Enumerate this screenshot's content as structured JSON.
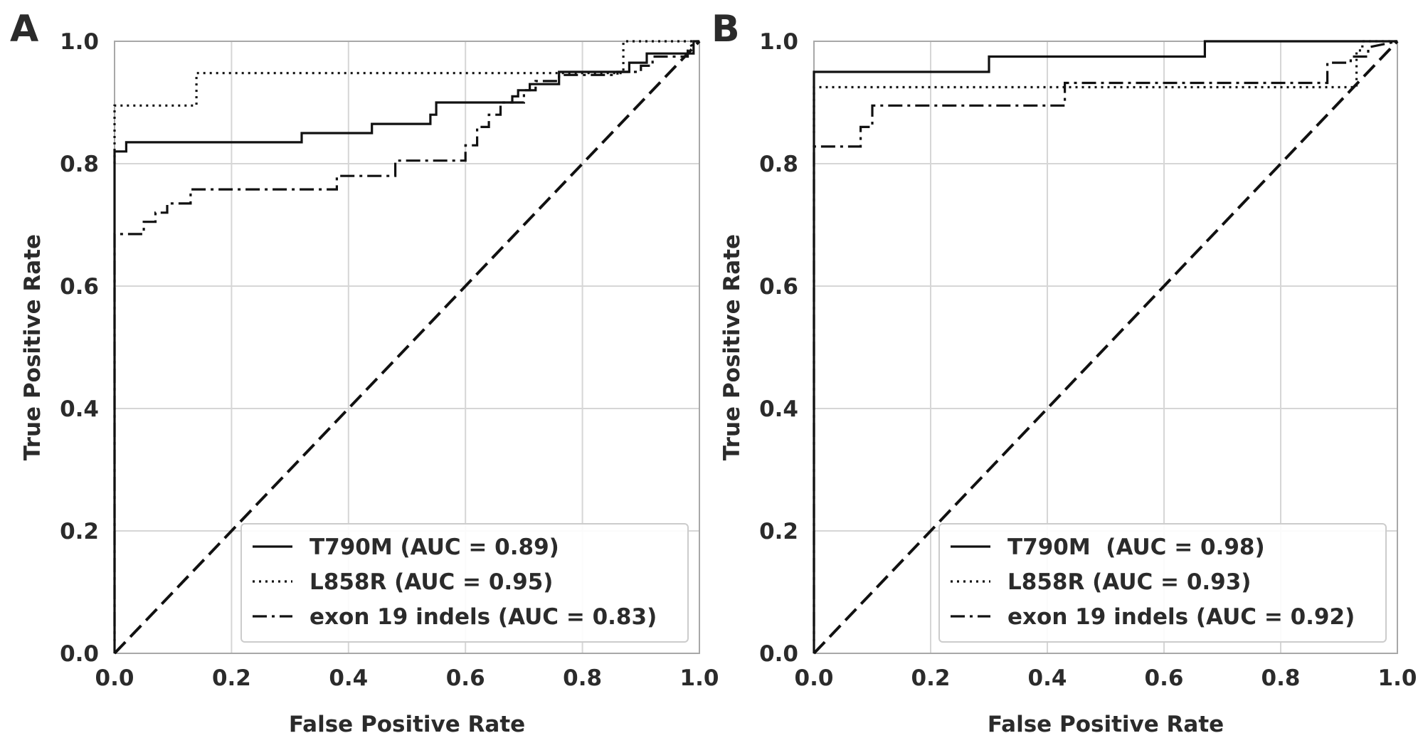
{
  "chart_data": [
    {
      "type": "line",
      "panel": "A",
      "xlabel": "False Positive Rate",
      "ylabel": "True Positive Rate",
      "xlim": [
        0.0,
        1.0
      ],
      "ylim": [
        0.0,
        1.0
      ],
      "xticks": [
        "0.0",
        "0.2",
        "0.4",
        "0.6",
        "0.8",
        "1.0"
      ],
      "yticks": [
        "0.0",
        "0.2",
        "0.4",
        "0.6",
        "0.8",
        "1.0"
      ],
      "grid": true,
      "legend_position": "lower-right",
      "diagonal": [
        [
          0,
          0
        ],
        [
          1,
          1
        ]
      ],
      "series": [
        {
          "name": "T790M (AUC = 0.89)",
          "style": "solid",
          "points": [
            [
              0,
              0.02
            ],
            [
              0,
              0.82
            ],
            [
              0.02,
              0.82
            ],
            [
              0.02,
              0.835
            ],
            [
              0.32,
              0.835
            ],
            [
              0.32,
              0.85
            ],
            [
              0.44,
              0.85
            ],
            [
              0.44,
              0.865
            ],
            [
              0.54,
              0.865
            ],
            [
              0.54,
              0.88
            ],
            [
              0.55,
              0.88
            ],
            [
              0.55,
              0.9
            ],
            [
              0.68,
              0.9
            ],
            [
              0.68,
              0.91
            ],
            [
              0.69,
              0.91
            ],
            [
              0.69,
              0.92
            ],
            [
              0.71,
              0.92
            ],
            [
              0.71,
              0.93
            ],
            [
              0.76,
              0.93
            ],
            [
              0.76,
              0.95
            ],
            [
              0.88,
              0.95
            ],
            [
              0.88,
              0.965
            ],
            [
              0.91,
              0.965
            ],
            [
              0.91,
              0.98
            ],
            [
              0.99,
              0.98
            ],
            [
              0.99,
              1.0
            ],
            [
              1.0,
              1.0
            ]
          ]
        },
        {
          "name": "L858R (AUC = 0.95)",
          "style": "dotted",
          "points": [
            [
              0,
              0.8
            ],
            [
              0,
              0.895
            ],
            [
              0.14,
              0.895
            ],
            [
              0.14,
              0.948
            ],
            [
              0.87,
              0.948
            ],
            [
              0.87,
              1.0
            ],
            [
              1.0,
              1.0
            ]
          ]
        },
        {
          "name": "exon 19 indels (AUC = 0.83)",
          "style": "dashdot",
          "points": [
            [
              0,
              0.0
            ],
            [
              0,
              0.685
            ],
            [
              0.05,
              0.685
            ],
            [
              0.05,
              0.705
            ],
            [
              0.07,
              0.705
            ],
            [
              0.07,
              0.72
            ],
            [
              0.09,
              0.72
            ],
            [
              0.09,
              0.735
            ],
            [
              0.13,
              0.735
            ],
            [
              0.13,
              0.758
            ],
            [
              0.38,
              0.758
            ],
            [
              0.38,
              0.78
            ],
            [
              0.48,
              0.78
            ],
            [
              0.48,
              0.805
            ],
            [
              0.6,
              0.805
            ],
            [
              0.6,
              0.83
            ],
            [
              0.62,
              0.83
            ],
            [
              0.62,
              0.86
            ],
            [
              0.64,
              0.86
            ],
            [
              0.64,
              0.88
            ],
            [
              0.66,
              0.88
            ],
            [
              0.66,
              0.9
            ],
            [
              0.7,
              0.9
            ],
            [
              0.7,
              0.92
            ],
            [
              0.72,
              0.92
            ],
            [
              0.72,
              0.935
            ],
            [
              0.76,
              0.935
            ],
            [
              0.76,
              0.945
            ],
            [
              0.86,
              0.945
            ],
            [
              0.86,
              0.95
            ],
            [
              0.9,
              0.95
            ],
            [
              0.9,
              0.96
            ],
            [
              0.92,
              0.96
            ],
            [
              0.92,
              0.975
            ],
            [
              0.98,
              0.975
            ],
            [
              0.98,
              0.99
            ],
            [
              1.0,
              1.0
            ]
          ]
        }
      ]
    },
    {
      "type": "line",
      "panel": "B",
      "xlabel": "False Positive Rate",
      "ylabel": "True Positive Rate",
      "xlim": [
        0.0,
        1.0
      ],
      "ylim": [
        0.0,
        1.0
      ],
      "xticks": [
        "0.0",
        "0.2",
        "0.4",
        "0.6",
        "0.8",
        "1.0"
      ],
      "yticks": [
        "0.0",
        "0.2",
        "0.4",
        "0.6",
        "0.8",
        "1.0"
      ],
      "grid": true,
      "legend_position": "lower-right",
      "diagonal": [
        [
          0,
          0
        ],
        [
          1,
          1
        ]
      ],
      "series": [
        {
          "name": "T790M  (AUC = 0.98)",
          "style": "solid",
          "points": [
            [
              0,
              0.02
            ],
            [
              0,
              0.95
            ],
            [
              0.3,
              0.95
            ],
            [
              0.3,
              0.975
            ],
            [
              0.67,
              0.975
            ],
            [
              0.67,
              1.0
            ],
            [
              1.0,
              1.0
            ]
          ]
        },
        {
          "name": "L858R (AUC = 0.93)",
          "style": "dotted",
          "points": [
            [
              0,
              0.85
            ],
            [
              0,
              0.925
            ],
            [
              0.93,
              0.925
            ],
            [
              0.93,
              0.985
            ],
            [
              0.94,
              0.985
            ],
            [
              0.94,
              1.0
            ],
            [
              1.0,
              1.0
            ]
          ]
        },
        {
          "name": "exon 19 indels (AUC = 0.92)",
          "style": "dashdot",
          "points": [
            [
              0,
              0.0
            ],
            [
              0,
              0.828
            ],
            [
              0.08,
              0.828
            ],
            [
              0.08,
              0.86
            ],
            [
              0.1,
              0.86
            ],
            [
              0.1,
              0.895
            ],
            [
              0.43,
              0.895
            ],
            [
              0.43,
              0.932
            ],
            [
              0.88,
              0.932
            ],
            [
              0.88,
              0.965
            ],
            [
              0.92,
              0.965
            ],
            [
              0.92,
              0.975
            ],
            [
              0.95,
              0.975
            ],
            [
              0.95,
              0.99
            ],
            [
              1.0,
              1.0
            ]
          ]
        }
      ]
    }
  ]
}
